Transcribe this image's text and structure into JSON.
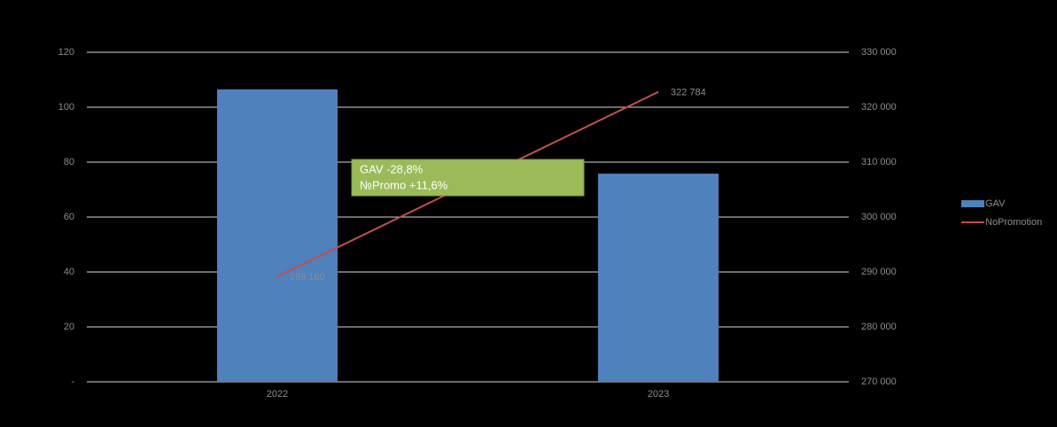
{
  "chart_data": {
    "type": "bar",
    "categories": [
      "2022",
      "2023"
    ],
    "series": [
      {
        "name": "GAV",
        "type": "bar",
        "color": "#4f81bd",
        "values": [
          106.5,
          75.8
        ]
      },
      {
        "name": "NoPromotion",
        "type": "line",
        "axis": "y2",
        "color": "#c0504d",
        "values": [
          289160,
          322784
        ],
        "value_labels": [
          "289 160",
          "322 784"
        ]
      }
    ],
    "ylim": [
      0,
      120
    ],
    "yticks": [
      {
        "value": 0,
        "label": "-"
      },
      20,
      40,
      60,
      80,
      100,
      120
    ],
    "y2lim": [
      270000,
      330000
    ],
    "y2ticks": [
      {
        "value": 270000,
        "label": "270 000"
      },
      {
        "value": 280000,
        "label": "280 000"
      },
      {
        "value": 290000,
        "label": "290 000"
      },
      {
        "value": 300000,
        "label": "300 000"
      },
      {
        "value": 310000,
        "label": "310 000"
      },
      {
        "value": 320000,
        "label": "320 000"
      },
      {
        "value": 330000,
        "label": "330 000"
      }
    ],
    "grid": true,
    "legend": "right",
    "annotations": [
      "GAV -28,8%",
      "№Promo +11,6%"
    ]
  }
}
